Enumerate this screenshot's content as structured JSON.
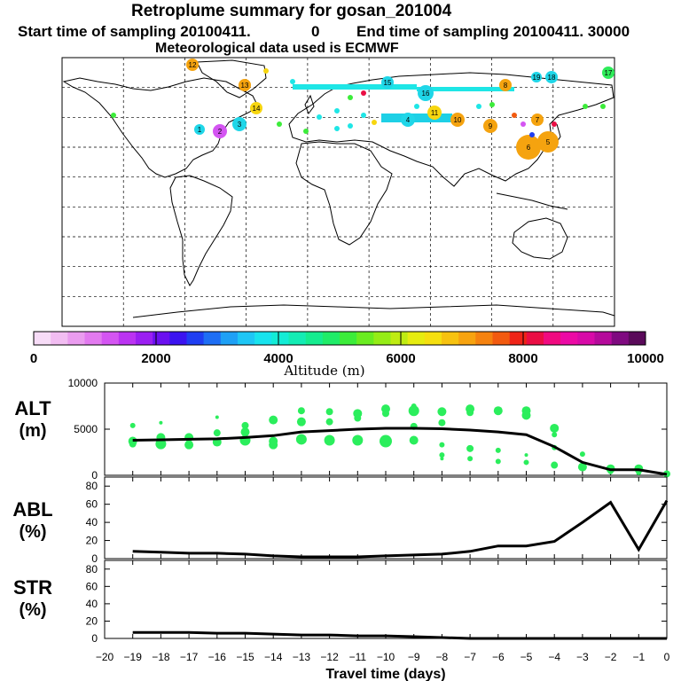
{
  "header": {
    "title": "Retroplume summary for gosan_201004",
    "start_label": "Start time of sampling 20100411.",
    "start_hour": "0",
    "end_label": "End time of sampling 20100411. 30000",
    "met_label": "Meteorological data used is ECMWF"
  },
  "colorbar": {
    "tick_labels": [
      "0",
      "2000",
      "4000",
      "6000",
      "8000",
      "10000"
    ],
    "tick_values": [
      0,
      2000,
      4000,
      6000,
      8000,
      10000
    ],
    "xlabel": "Altitude (m)",
    "colors": [
      "#f7dcf7",
      "#f2bdf2",
      "#ea9cef",
      "#e27aef",
      "#d455f2",
      "#bb33f2",
      "#9b1ff2",
      "#6b10f0",
      "#3b13f0",
      "#1f3ef2",
      "#1e6ef4",
      "#1ea0f5",
      "#1ec6f5",
      "#18e3ee",
      "#13ecd6",
      "#13ecb4",
      "#15ec8f",
      "#1fec68",
      "#3cec3a",
      "#6aec20",
      "#95ec16",
      "#bfec12",
      "#e6ec10",
      "#f5df10",
      "#f7c210",
      "#f7a30f",
      "#f5820f",
      "#f25a0f",
      "#ef2418",
      "#ea0e44",
      "#f00a80",
      "#ec0aa5",
      "#d80aa8",
      "#b50a9b",
      "#7f0a80",
      "#5a0a5a"
    ]
  },
  "map": {
    "plume_labels": [
      {
        "n": "12",
        "c": "#f5a30f"
      },
      {
        "n": "13",
        "c": "#f5a30f"
      },
      {
        "n": "14",
        "c": "#f7d60f"
      },
      {
        "n": "15",
        "c": "#1fd6e8"
      },
      {
        "n": "16",
        "c": "#1fd6e8"
      },
      {
        "n": "17",
        "c": "#2fec5a"
      },
      {
        "n": "18",
        "c": "#1fd6e8"
      },
      {
        "n": "19",
        "c": "#1fd6e8"
      },
      {
        "n": "11",
        "c": "#f7d60f"
      },
      {
        "n": "10",
        "c": "#f5a30f"
      },
      {
        "n": "9",
        "c": "#f5a30f"
      },
      {
        "n": "8",
        "c": "#f5a30f"
      },
      {
        "n": "7",
        "c": "#f5a30f"
      },
      {
        "n": "6",
        "c": "#f5a30f"
      },
      {
        "n": "5",
        "c": "#f5a30f"
      },
      {
        "n": "4",
        "c": "#1fd6e8"
      },
      {
        "n": "3",
        "c": "#1fd6e8"
      },
      {
        "n": "2",
        "c": "#d455f2"
      },
      {
        "n": "1",
        "c": "#1fd6e8"
      }
    ]
  },
  "chart_data": [
    {
      "type": "scatter+line",
      "panel": "ALT",
      "ylabel": "ALT",
      "yunit": "(m)",
      "ylim": [
        0,
        10000
      ],
      "yticks": [
        0,
        5000,
        10000
      ],
      "xlim": [
        -20,
        0
      ],
      "x": [
        -19,
        -18,
        -17,
        -16,
        -15,
        -14,
        -13,
        -12,
        -11,
        -10,
        -9,
        -8,
        -7,
        -6,
        -5,
        -4,
        -3,
        -2,
        -1,
        0
      ],
      "mean_line": [
        3800,
        3850,
        3900,
        3950,
        4100,
        4300,
        4700,
        4850,
        5000,
        5100,
        5100,
        5050,
        4900,
        4700,
        4400,
        3100,
        1400,
        600,
        600,
        100
      ],
      "points": [
        [
          -19,
          5400,
          3
        ],
        [
          -19,
          3700,
          5
        ],
        [
          -19,
          3400,
          4
        ],
        [
          -18,
          5700,
          2
        ],
        [
          -18,
          4100,
          5
        ],
        [
          -18,
          3400,
          6
        ],
        [
          -17,
          4100,
          5
        ],
        [
          -17,
          3300,
          5
        ],
        [
          -16,
          6300,
          2
        ],
        [
          -16,
          4600,
          4
        ],
        [
          -16,
          3600,
          5
        ],
        [
          -15,
          5400,
          4
        ],
        [
          -15,
          4700,
          5
        ],
        [
          -15,
          3800,
          6
        ],
        [
          -14,
          6000,
          5
        ],
        [
          -14,
          3700,
          5
        ],
        [
          -14,
          3300,
          5
        ],
        [
          -13,
          7000,
          4
        ],
        [
          -13,
          5800,
          5
        ],
        [
          -13,
          3900,
          6
        ],
        [
          -12,
          6900,
          4
        ],
        [
          -12,
          5800,
          4
        ],
        [
          -12,
          3800,
          6
        ],
        [
          -11,
          6700,
          5
        ],
        [
          -11,
          6200,
          4
        ],
        [
          -11,
          3800,
          6
        ],
        [
          -10,
          7200,
          5
        ],
        [
          -10,
          6700,
          4
        ],
        [
          -10,
          3700,
          7
        ],
        [
          -9,
          7500,
          3
        ],
        [
          -9,
          7000,
          6
        ],
        [
          -9,
          5300,
          4
        ],
        [
          -9,
          3800,
          5
        ],
        [
          -8,
          6900,
          5
        ],
        [
          -8,
          5700,
          4
        ],
        [
          -8,
          3300,
          3
        ],
        [
          -8,
          2200,
          3
        ],
        [
          -8,
          1800,
          2
        ],
        [
          -7,
          7200,
          5
        ],
        [
          -7,
          6800,
          4
        ],
        [
          -7,
          2900,
          4
        ],
        [
          -7,
          1800,
          3
        ],
        [
          -6,
          7000,
          5
        ],
        [
          -6,
          2700,
          3
        ],
        [
          -6,
          1500,
          3
        ],
        [
          -5,
          7000,
          5
        ],
        [
          -5,
          6500,
          5
        ],
        [
          -5,
          2200,
          2
        ],
        [
          -5,
          1400,
          3
        ],
        [
          -4,
          5100,
          5
        ],
        [
          -4,
          4400,
          3
        ],
        [
          -4,
          3000,
          3
        ],
        [
          -4,
          1100,
          4
        ],
        [
          -3,
          2300,
          3
        ],
        [
          -3,
          900,
          5
        ],
        [
          -2,
          700,
          5
        ],
        [
          -2,
          400,
          3
        ],
        [
          -1,
          700,
          5
        ],
        [
          -1,
          300,
          3
        ],
        [
          0,
          150,
          4
        ]
      ]
    },
    {
      "type": "line",
      "panel": "ABL",
      "ylabel": "ABL",
      "yunit": "(%)",
      "ylim": [
        0,
        90
      ],
      "yticks": [
        0,
        20,
        40,
        60,
        80
      ],
      "x": [
        -19,
        -18,
        -17,
        -16,
        -15,
        -14,
        -13,
        -12,
        -11,
        -10,
        -9,
        -8,
        -7,
        -6,
        -5,
        -4,
        -3,
        -2,
        -1,
        0
      ],
      "values": [
        8,
        7,
        6,
        6,
        5,
        3,
        2,
        2,
        2,
        3,
        4,
        5,
        8,
        14,
        14,
        19,
        40,
        62,
        10,
        64
      ]
    },
    {
      "type": "line",
      "panel": "STR",
      "ylabel": "STR",
      "yunit": "(%)",
      "ylim": [
        0,
        90
      ],
      "yticks": [
        0,
        20,
        40,
        60,
        80
      ],
      "x": [
        -19,
        -18,
        -17,
        -16,
        -15,
        -14,
        -13,
        -12,
        -11,
        -10,
        -9,
        -8,
        -7,
        -6,
        -5,
        -4,
        -3,
        -2,
        -1,
        0
      ],
      "values": [
        7,
        7,
        7,
        6,
        6,
        5,
        4,
        4,
        3,
        3,
        2,
        1,
        0,
        0,
        0,
        0,
        0,
        0,
        0,
        0
      ]
    }
  ],
  "xaxis": {
    "tick_labels": [
      "−20",
      "−19",
      "−18",
      "−17",
      "−16",
      "−15",
      "−14",
      "−13",
      "−12",
      "−11",
      "−10",
      "−9",
      "−8",
      "−7",
      "−6",
      "−5",
      "−4",
      "−3",
      "−2",
      "−1",
      "0"
    ],
    "xlabel": "Travel time (days)"
  }
}
